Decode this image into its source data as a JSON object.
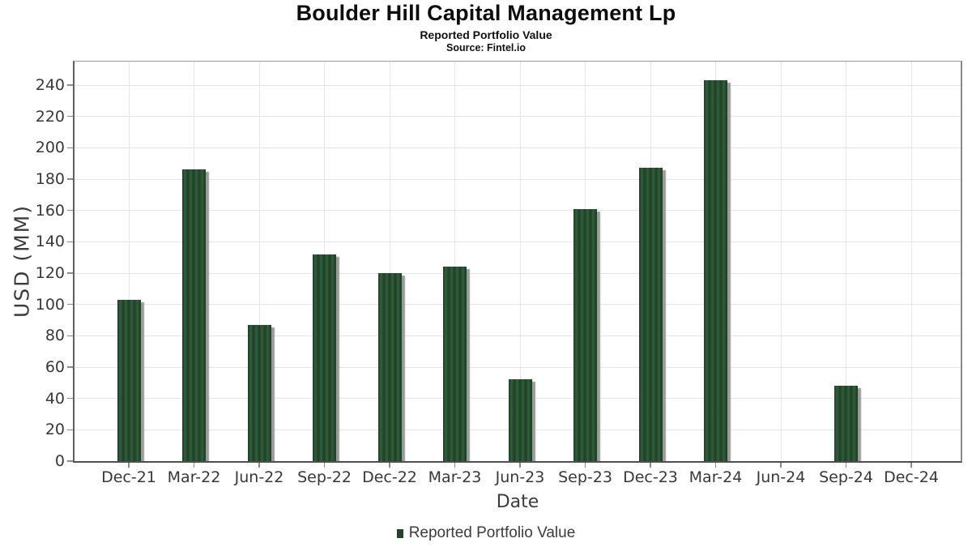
{
  "header": {
    "title": "Boulder Hill Capital Management Lp",
    "subtitle": "Reported Portfolio Value",
    "source": "Source: Fintel.io"
  },
  "chart_data": {
    "type": "bar",
    "title": "Boulder Hill Capital Management Lp",
    "subtitle": "Reported Portfolio Value",
    "source": "Source: Fintel.io",
    "categories": [
      "Dec-21",
      "Mar-22",
      "Jun-22",
      "Sep-22",
      "Dec-22",
      "Mar-23",
      "Jun-23",
      "Sep-23",
      "Dec-23",
      "Mar-24",
      "Jun-24",
      "Sep-24",
      "Dec-24"
    ],
    "series": [
      {
        "name": "Reported Portfolio Value",
        "values": [
          103,
          186,
          87,
          132,
          120,
          124,
          52,
          161,
          187,
          243,
          null,
          48,
          null
        ]
      }
    ],
    "xlabel": "Date",
    "ylabel": "USD (MM)",
    "ylim": [
      0,
      255
    ],
    "yticks": [
      0,
      20,
      40,
      60,
      80,
      100,
      120,
      140,
      160,
      180,
      200,
      220,
      240
    ],
    "grid": true,
    "legend_position": "bottom"
  },
  "legend": {
    "label": "Reported Portfolio Value"
  },
  "colors": {
    "bar_stripe_dark": "#1e3e26",
    "bar_stripe_light": "#30603a",
    "bar_shadow": "#9a9a9a",
    "legend_marker": "#1f4628",
    "gridline": "#e4e4e4"
  }
}
